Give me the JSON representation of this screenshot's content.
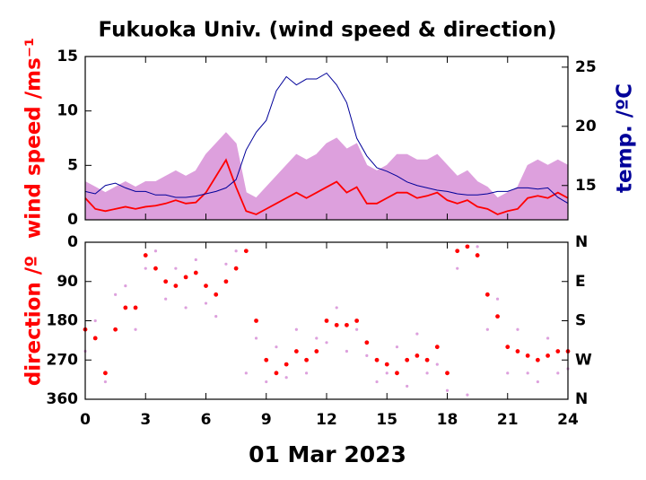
{
  "chart_data": [
    {
      "type": "line",
      "title": "Fukuoka Univ. (wind speed & direction)",
      "ylabel": "wind speed /ms⁻¹",
      "ylabel_color": "#ff0000",
      "y2label": "temp. /ºC",
      "y2label_color": "#000099",
      "x": [
        0,
        0.5,
        1,
        1.5,
        2,
        2.5,
        3,
        3.5,
        4,
        4.5,
        5,
        5.5,
        6,
        6.5,
        7,
        7.5,
        8,
        8.5,
        9,
        9.5,
        10,
        10.5,
        11,
        11.5,
        12,
        12.5,
        13,
        13.5,
        14,
        14.5,
        15,
        15.5,
        16,
        16.5,
        17,
        17.5,
        18,
        18.5,
        19,
        19.5,
        20,
        20.5,
        21,
        21.5,
        22,
        22.5,
        23,
        23.5,
        24
      ],
      "xlim": [
        0,
        24
      ],
      "ylim": [
        0,
        15
      ],
      "yticks": [
        0,
        5,
        10,
        15
      ],
      "y2lim": [
        12.1,
        25.9
      ],
      "y2ticks": [
        15,
        20,
        25
      ],
      "series": [
        {
          "color": "#dda0dd",
          "style": "area",
          "values": [
            3.5,
            3,
            2.5,
            3,
            3.5,
            3,
            3.5,
            3.5,
            4,
            4.5,
            4,
            4.5,
            6,
            7,
            8,
            7,
            2.5,
            2,
            3,
            4,
            5,
            6,
            5.5,
            6,
            7,
            7.5,
            6.5,
            7,
            5,
            4.5,
            5,
            6,
            6,
            5.5,
            5.5,
            6,
            5,
            4,
            4.5,
            3.5,
            3,
            2,
            2.5,
            3,
            5,
            5.5,
            5,
            5.5,
            5
          ]
        },
        {
          "color": "#ff0000",
          "values": [
            2,
            1,
            0.8,
            1,
            1.2,
            1,
            1.2,
            1.3,
            1.5,
            1.8,
            1.5,
            1.6,
            2.5,
            4,
            5.5,
            3,
            0.8,
            0.5,
            1,
            1.5,
            2,
            2.5,
            2,
            2.5,
            3,
            3.5,
            2.5,
            3,
            1.5,
            1.5,
            2,
            2.5,
            2.5,
            2,
            2.2,
            2.5,
            1.8,
            1.5,
            1.8,
            1.2,
            1,
            0.5,
            0.8,
            1,
            2,
            2.2,
            2,
            2.5,
            2
          ]
        },
        {
          "color": "#000099",
          "axis": "y2",
          "values": [
            14.5,
            14.3,
            15,
            15.2,
            14.8,
            14.5,
            14.5,
            14.2,
            14.2,
            14,
            14,
            14.1,
            14.3,
            14.5,
            14.8,
            15.5,
            18,
            19.5,
            20.5,
            23,
            24.2,
            23.5,
            24,
            24,
            24.5,
            23.5,
            22,
            19,
            17.5,
            16.5,
            16.2,
            15.8,
            15.3,
            15,
            14.8,
            14.6,
            14.5,
            14.3,
            14.2,
            14.2,
            14.3,
            14.5,
            14.5,
            14.8,
            14.8,
            14.7,
            14.8,
            14,
            13.5
          ]
        }
      ]
    },
    {
      "type": "scatter",
      "ylabel": "direction /º",
      "ylabel_color": "#ff0000",
      "xlabel": "01 Mar 2023",
      "x": [
        0,
        0.5,
        1,
        1.5,
        2,
        2.5,
        3,
        3.5,
        4,
        4.5,
        5,
        5.5,
        6,
        6.5,
        7,
        7.5,
        8,
        8.5,
        9,
        9.5,
        10,
        10.5,
        11,
        11.5,
        12,
        12.5,
        13,
        13.5,
        14,
        14.5,
        15,
        15.5,
        16,
        16.5,
        17,
        17.5,
        18,
        18.5,
        19,
        19.5,
        20,
        20.5,
        21,
        21.5,
        22,
        22.5,
        23,
        23.5,
        24
      ],
      "xlim": [
        0,
        24
      ],
      "xticks": [
        0,
        3,
        6,
        9,
        12,
        15,
        18,
        21,
        24
      ],
      "ylim": [
        360,
        0
      ],
      "yticks": [
        0,
        90,
        180,
        270,
        360
      ],
      "y2lim": [
        360,
        0
      ],
      "y2ticks": [
        {
          "value": 0,
          "label": "N"
        },
        {
          "value": 90,
          "label": "E"
        },
        {
          "value": 180,
          "label": "S"
        },
        {
          "value": 270,
          "label": "W"
        },
        {
          "value": 360,
          "label": "N"
        }
      ],
      "series": [
        {
          "color": "#dda0dd",
          "values": [
            250,
            180,
            320,
            120,
            100,
            200,
            60,
            20,
            130,
            60,
            150,
            40,
            140,
            170,
            50,
            20,
            300,
            220,
            320,
            240,
            310,
            200,
            300,
            220,
            230,
            150,
            250,
            200,
            260,
            320,
            300,
            240,
            330,
            210,
            300,
            280,
            340,
            60,
            350,
            10,
            200,
            130,
            300,
            200,
            300,
            320,
            220,
            300,
            290
          ]
        },
        {
          "color": "#ff0000",
          "values": [
            200,
            220,
            300,
            200,
            150,
            150,
            30,
            60,
            90,
            100,
            80,
            70,
            100,
            120,
            90,
            60,
            20,
            180,
            270,
            300,
            280,
            250,
            270,
            250,
            180,
            190,
            190,
            180,
            230,
            270,
            280,
            300,
            270,
            260,
            270,
            240,
            300,
            20,
            10,
            30,
            120,
            170,
            240,
            250,
            260,
            270,
            260,
            250,
            250
          ]
        }
      ]
    }
  ]
}
